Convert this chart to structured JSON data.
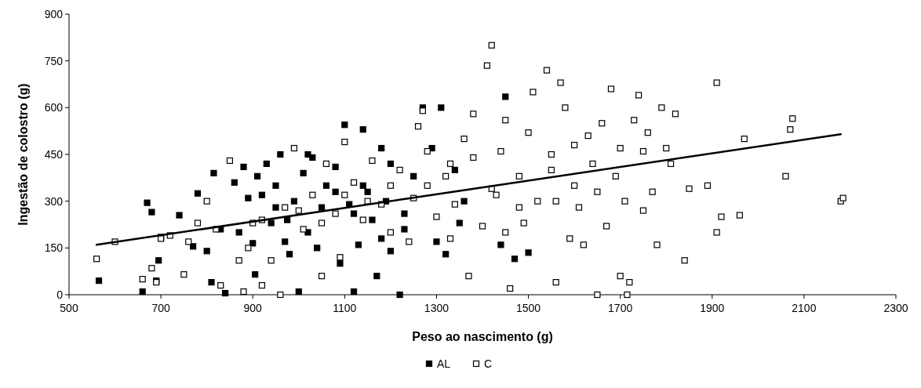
{
  "chart_data": {
    "type": "scatter",
    "xlabel": "Peso ao nascimento (g)",
    "ylabel": "Ingestão de colostro (g)",
    "xlim": [
      500,
      2300
    ],
    "xticks": [
      500,
      700,
      900,
      1100,
      1300,
      1500,
      1700,
      1900,
      2100,
      2300
    ],
    "ylim": [
      0,
      900
    ],
    "yticks": [
      0,
      150,
      300,
      450,
      600,
      750,
      900
    ],
    "grid": false,
    "legend": "bottom",
    "marker": "square",
    "series": [
      {
        "name": "AL",
        "color": "#000000",
        "x": [
          565,
          660,
          670,
          680,
          690,
          695,
          700,
          740,
          770,
          780,
          800,
          810,
          815,
          830,
          840,
          860,
          870,
          880,
          890,
          900,
          905,
          910,
          920,
          930,
          940,
          950,
          960,
          970,
          975,
          990,
          1000,
          1010,
          1020,
          1030,
          1040,
          1050,
          1060,
          1080,
          1090,
          1100,
          1110,
          1120,
          1130,
          1140,
          1150,
          1160,
          1170,
          1180,
          1190,
          1200,
          1220,
          1230,
          1250,
          1270,
          1290,
          1300,
          1310,
          1320,
          1340,
          1350,
          1360,
          1440,
          1450,
          1470,
          1500,
          1230,
          1180,
          1120,
          1080,
          1140,
          1200,
          1020,
          950,
          980
        ],
        "values": [
          45,
          10,
          295,
          265,
          45,
          110,
          185,
          255,
          155,
          325,
          140,
          40,
          390,
          210,
          5,
          360,
          200,
          410,
          310,
          165,
          65,
          380,
          320,
          420,
          230,
          350,
          450,
          170,
          240,
          300,
          10,
          390,
          450,
          440,
          150,
          280,
          350,
          410,
          100,
          545,
          290,
          10,
          160,
          530,
          330,
          240,
          60,
          470,
          300,
          140,
          0,
          210,
          380,
          600,
          470,
          170,
          600,
          130,
          400,
          230,
          300,
          160,
          635,
          115,
          135,
          260,
          180,
          260,
          330,
          350,
          420,
          200,
          280,
          130
        ]
      },
      {
        "name": "C",
        "color": "#ffffff",
        "x": [
          560,
          600,
          660,
          680,
          690,
          700,
          720,
          750,
          760,
          780,
          800,
          820,
          830,
          850,
          870,
          880,
          890,
          900,
          920,
          940,
          960,
          970,
          990,
          1010,
          1030,
          1050,
          1060,
          1080,
          1090,
          1100,
          1120,
          1140,
          1160,
          1180,
          1200,
          1220,
          1240,
          1260,
          1270,
          1280,
          1300,
          1320,
          1340,
          1360,
          1370,
          1380,
          1400,
          1410,
          1420,
          1430,
          1440,
          1450,
          1460,
          1480,
          1490,
          1500,
          1510,
          1520,
          1540,
          1550,
          1560,
          1570,
          1580,
          1590,
          1600,
          1610,
          1620,
          1630,
          1640,
          1650,
          1660,
          1670,
          1680,
          1690,
          1700,
          1710,
          1715,
          1720,
          1730,
          1740,
          1750,
          1760,
          1770,
          1780,
          1790,
          1800,
          1810,
          1820,
          1840,
          1850,
          1890,
          1910,
          1910,
          1920,
          1960,
          1970,
          2060,
          2070,
          2075,
          2180,
          2185,
          1330,
          1250,
          1150,
          1000,
          1420,
          1480,
          1550,
          1600,
          1700,
          1750,
          1650,
          1380,
          1280,
          1200,
          1100,
          1050,
          920,
          1330,
          1450,
          1560
        ],
        "values": [
          115,
          170,
          50,
          85,
          40,
          180,
          190,
          65,
          170,
          230,
          300,
          210,
          30,
          430,
          110,
          10,
          150,
          230,
          30,
          110,
          0,
          280,
          470,
          210,
          320,
          60,
          420,
          260,
          120,
          490,
          360,
          240,
          430,
          290,
          200,
          400,
          170,
          540,
          590,
          460,
          250,
          380,
          290,
          500,
          60,
          580,
          220,
          735,
          800,
          320,
          460,
          560,
          20,
          380,
          230,
          520,
          650,
          300,
          720,
          450,
          40,
          680,
          600,
          180,
          350,
          280,
          160,
          510,
          420,
          0,
          550,
          220,
          660,
          380,
          60,
          300,
          0,
          40,
          560,
          640,
          270,
          520,
          330,
          160,
          600,
          470,
          420,
          580,
          110,
          340,
          350,
          680,
          200,
          250,
          255,
          500,
          380,
          530,
          565,
          300,
          310,
          420,
          310,
          300,
          270,
          340,
          280,
          400,
          480,
          470,
          460,
          330,
          440,
          350,
          350,
          320,
          230,
          240,
          180,
          200,
          300
        ]
      },
      {
        "type": "line",
        "marker": "none",
        "color": "#000000",
        "x": [
          560,
          2180
        ],
        "values": [
          160,
          515
        ]
      }
    ]
  }
}
